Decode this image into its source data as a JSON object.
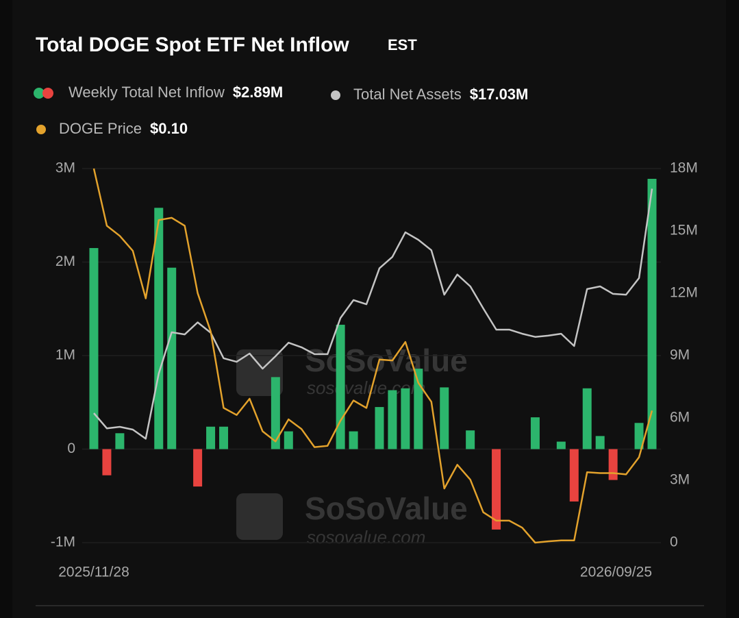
{
  "chart_data": {
    "type": "bar_line",
    "title": "Total DOGE Spot ETF Net Inflow",
    "timezone": "EST",
    "watermark": "SoSoValue",
    "watermark_url": "sosovalue.com",
    "categories": [
      "2025/11/28",
      null,
      null,
      null,
      null,
      null,
      null,
      null,
      null,
      null,
      null,
      null,
      null,
      null,
      null,
      null,
      null,
      null,
      null,
      null,
      null,
      null,
      null,
      null,
      null,
      null,
      null,
      null,
      null,
      null,
      null,
      null,
      null,
      null,
      null,
      null,
      null,
      null,
      null,
      null,
      null,
      null,
      null,
      "2026/09/25"
    ],
    "ylim": [
      -1000000,
      3000000
    ],
    "yticks": [
      {
        "value": 3000000,
        "label": "3M"
      },
      {
        "value": 2000000,
        "label": "2M"
      },
      {
        "value": 1000000,
        "label": "1M"
      },
      0,
      {
        "value": -1000000,
        "label": "-1M"
      }
    ],
    "y2lim": [
      0,
      18000000
    ],
    "y2ticks": [
      {
        "value": 18000000,
        "label": "18M"
      },
      {
        "value": 15000000,
        "label": "15M"
      },
      {
        "value": 12000000,
        "label": "12M"
      },
      {
        "value": 9000000,
        "label": "9M"
      },
      {
        "value": 6000000,
        "label": "6M"
      },
      {
        "value": 3000000,
        "label": "3M"
      },
      0
    ],
    "y3lim": [
      0.07,
      0.155
    ],
    "grid": true,
    "series": [
      {
        "name": "Weekly Total Net Inflow",
        "legend_value": "$2.89M",
        "type": "bar",
        "color": "#2cb56c",
        "negative_color": "#e8433f",
        "values": [
          2150000,
          -280000,
          170000,
          0,
          0,
          2580000,
          1940000,
          0,
          -400000,
          240000,
          240000,
          0,
          0,
          0,
          770000,
          190000,
          0,
          0,
          0,
          1330000,
          190000,
          0,
          450000,
          630000,
          650000,
          860000,
          0,
          660000,
          0,
          200000,
          0,
          -860000,
          0,
          0,
          340000,
          0,
          80000,
          -560000,
          650000,
          140000,
          -330000,
          0,
          280000,
          2890000
        ]
      },
      {
        "name": "Total Net Assets",
        "legend_value": "$17.03M",
        "type": "line",
        "axis": "y2",
        "color": "#c4c4c4",
        "values": [
          6230000,
          5500000,
          5570000,
          5440000,
          5000000,
          8140000,
          10120000,
          10020000,
          10600000,
          10100000,
          8870000,
          8700000,
          9100000,
          8370000,
          8970000,
          9620000,
          9400000,
          9070000,
          9070000,
          10810000,
          11670000,
          11470000,
          13200000,
          13750000,
          14930000,
          14570000,
          14070000,
          11930000,
          12900000,
          12330000,
          11270000,
          10250000,
          10250000,
          10050000,
          9900000,
          9960000,
          10050000,
          9460000,
          12200000,
          12330000,
          11970000,
          11930000,
          12730000,
          17030000
        ]
      },
      {
        "name": "DOGE Price",
        "legend_value": "$0.10",
        "type": "line",
        "axis": "y3",
        "color": "#e3a22c",
        "values": [
          0.155,
          0.142,
          0.1397,
          0.1363,
          0.1255,
          0.1433,
          0.1438,
          0.142,
          0.1267,
          0.118,
          0.1006,
          0.099,
          0.1027,
          0.0953,
          0.093,
          0.098,
          0.0958,
          0.0917,
          0.092,
          0.0977,
          0.1023,
          0.1006,
          0.1116,
          0.1114,
          0.1156,
          0.1063,
          0.102,
          0.0823,
          0.0877,
          0.0843,
          0.0769,
          0.075,
          0.075,
          0.0734,
          0.07,
          0.0703,
          0.0705,
          0.0705,
          0.086,
          0.0858,
          0.0858,
          0.0855,
          0.0894,
          0.1
        ]
      }
    ]
  }
}
